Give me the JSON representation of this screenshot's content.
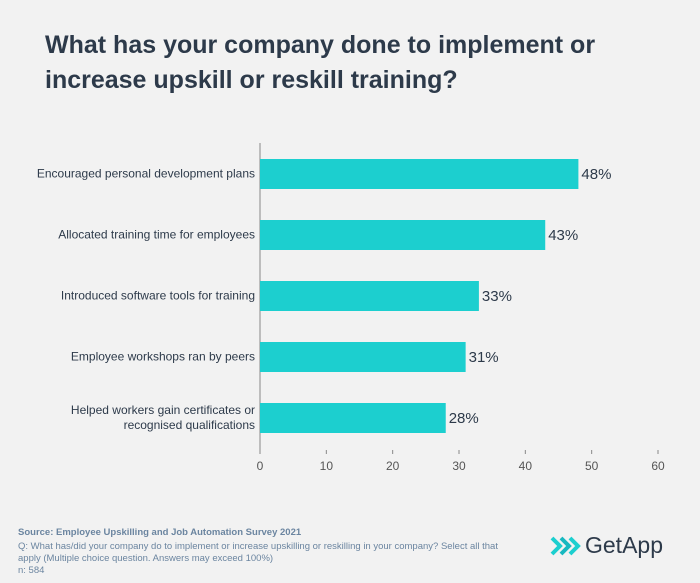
{
  "chart_data": {
    "type": "hbar",
    "title": "What has your company done to implement or increase upskill or reskill training?",
    "categories": [
      "Encouraged personal development plans",
      "Allocated training time for employees",
      "Introduced software tools for training",
      "Employee workshops ran by peers",
      "Helped workers gain certificates or\nrecognised qualifications"
    ],
    "values": [
      48,
      43,
      33,
      31,
      28
    ],
    "value_labels": [
      "48%",
      "43%",
      "33%",
      "31%",
      "28%"
    ],
    "color": "#1ccfcf",
    "xlim": [
      0,
      60
    ],
    "xticks": [
      0,
      10,
      20,
      30,
      40,
      50,
      60
    ],
    "source": "Source: Employee Upskilling and Job Automation Survey 2021",
    "question": "Q: What has/did your company do to implement or increase upskilling or reskilling in your company? Select all that apply (Multiple choice question. Answers may exceed 100%)",
    "sample": "n: 584",
    "brand": "GetApp"
  }
}
